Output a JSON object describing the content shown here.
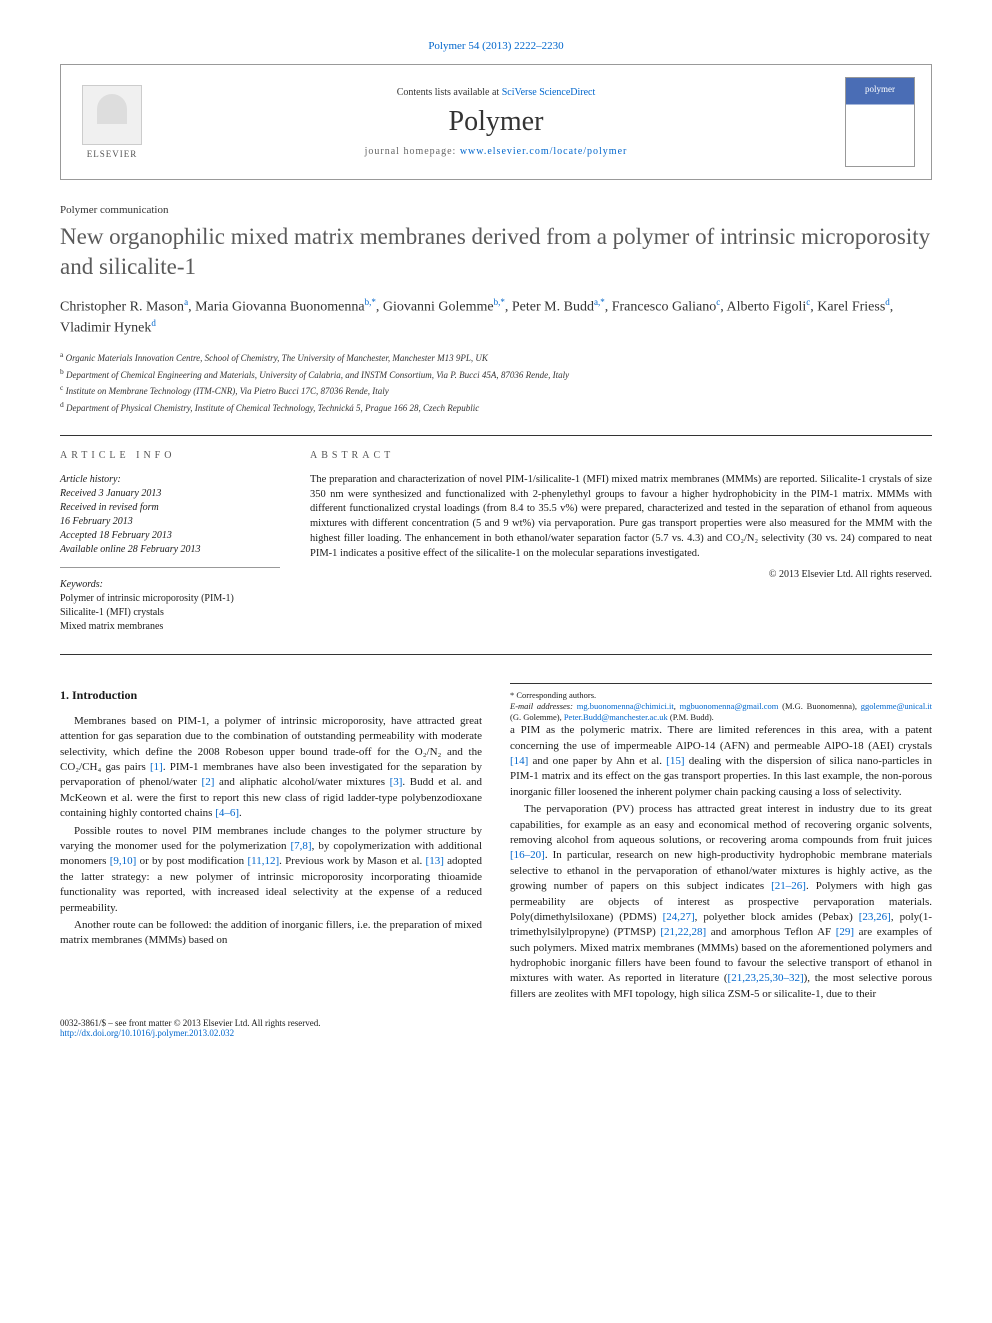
{
  "citation": "Polymer 54 (2013) 2222–2230",
  "header": {
    "publisher_name": "ELSEVIER",
    "contents_prefix": "Contents lists available at ",
    "contents_link": "SciVerse ScienceDirect",
    "journal_name": "Polymer",
    "homepage_prefix": "journal homepage: ",
    "homepage_url": "www.elsevier.com/locate/polymer",
    "thumb_label": "polymer"
  },
  "article": {
    "comm_type": "Polymer communication",
    "title": "New organophilic mixed matrix membranes derived from a polymer of intrinsic microporosity and silicalite-1",
    "authors_html": "Christopher R. Mason<sup>a</sup>, Maria Giovanna Buonomenna<sup>b,*</sup>, Giovanni Golemme<sup>b,*</sup>, Peter M. Budd<sup>a,*</sup>, Francesco Galiano<sup>c</sup>, Alberto Figoli<sup>c</sup>, Karel Friess<sup>d</sup>, Vladimir Hynek<sup>d</sup>",
    "affiliations": {
      "a": "Organic Materials Innovation Centre, School of Chemistry, The University of Manchester, Manchester M13 9PL, UK",
      "b": "Department of Chemical Engineering and Materials, University of Calabria, and INSTM Consortium, Via P. Bucci 45A, 87036 Rende, Italy",
      "c": "Institute on Membrane Technology (ITM-CNR), Via Pietro Bucci 17C, 87036 Rende, Italy",
      "d": "Department of Physical Chemistry, Institute of Chemical Technology, Technická 5, Prague 166 28, Czech Republic"
    }
  },
  "info": {
    "label": "ARTICLE INFO",
    "history_title": "Article history:",
    "history": [
      "Received 3 January 2013",
      "Received in revised form",
      "16 February 2013",
      "Accepted 18 February 2013",
      "Available online 28 February 2013"
    ],
    "keywords_title": "Keywords:",
    "keywords": [
      "Polymer of intrinsic microporosity (PIM-1)",
      "Silicalite-1 (MFI) crystals",
      "Mixed matrix membranes"
    ]
  },
  "abstract": {
    "label": "ABSTRACT",
    "text": "The preparation and characterization of novel PIM-1/silicalite-1 (MFI) mixed matrix membranes (MMMs) are reported. Silicalite-1 crystals of size 350 nm were synthesized and functionalized with 2-phenylethyl groups to favour a higher hydrophobicity in the PIM-1 matrix. MMMs with different functionalized crystal loadings (from 8.4 to 35.5 v%) were prepared, characterized and tested in the separation of ethanol from aqueous mixtures with different concentration (5 and 9 wt%) via pervaporation. Pure gas transport properties were also measured for the MMM with the highest filler loading. The enhancement in both ethanol/water separation factor (5.7 vs. 4.3) and CO₂/N₂ selectivity (30 vs. 24) compared to neat PIM-1 indicates a positive effect of the silicalite-1 on the molecular separations investigated.",
    "copyright": "© 2013 Elsevier Ltd. All rights reserved."
  },
  "body": {
    "section1_title": "1. Introduction",
    "p1": "Membranes based on PIM-1, a polymer of intrinsic microporosity, have attracted great attention for gas separation due to the combination of outstanding permeability with moderate selectivity, which define the 2008 Robeson upper bound trade-off for the O₂/N₂ and the CO₂/CH₄ gas pairs [1]. PIM-1 membranes have also been investigated for the separation by pervaporation of phenol/water [2] and aliphatic alcohol/water mixtures [3]. Budd et al. and McKeown et al. were the first to report this new class of rigid ladder-type polybenzodioxane containing highly contorted chains [4–6].",
    "p2": "Possible routes to novel PIM membranes include changes to the polymer structure by varying the monomer used for the polymerization [7,8], by copolymerization with additional monomers [9,10] or by post modification [11,12]. Previous work by Mason et al. [13] adopted the latter strategy: a new polymer of intrinsic microporosity incorporating thioamide functionality was reported, with increased ideal selectivity at the expense of a reduced permeability.",
    "p3": "Another route can be followed: the addition of inorganic fillers, i.e. the preparation of mixed matrix membranes (MMMs) based on",
    "p4": "a PIM as the polymeric matrix. There are limited references in this area, with a patent concerning the use of impermeable AlPO-14 (AFN) and permeable AlPO-18 (AEI) crystals [14] and one paper by Ahn et al. [15] dealing with the dispersion of silica nano-particles in PIM-1 matrix and its effect on the gas transport properties. In this last example, the non-porous inorganic filler loosened the inherent polymer chain packing causing a loss of selectivity.",
    "p5": "The pervaporation (PV) process has attracted great interest in industry due to its great capabilities, for example as an easy and economical method of recovering organic solvents, removing alcohol from aqueous solutions, or recovering aroma compounds from fruit juices [16–20]. In particular, research on new high-productivity hydrophobic membrane materials selective to ethanol in the pervaporation of ethanol/water mixtures is highly active, as the growing number of papers on this subject indicates [21–26]. Polymers with high gas permeability are objects of interest as prospective pervaporation materials. Poly(dimethylsiloxane) (PDMS) [24,27], polyether block amides (Pebax) [23,26], poly(1-trimethylsilylpropyne) (PTMSP) [21,22,28] and amorphous Teflon AF [29] are examples of such polymers. Mixed matrix membranes (MMMs) based on the aforementioned polymers and hydrophobic inorganic fillers have been found to favour the selective transport of ethanol in mixtures with water. As reported in literature ([21,23,25,30–32]), the most selective porous fillers are zeolites with MFI topology, high silica ZSM-5 or silicalite-1, due to their"
  },
  "footnotes": {
    "corr": "* Corresponding authors.",
    "email_label": "E-mail addresses:",
    "emails": "mg.buonomenna@chimici.it, mgbuonomenna@gmail.com (M.G. Buonomenna), ggolemme@unical.it (G. Golemme), Peter.Budd@manchester.ac.uk (P.M. Budd)."
  },
  "footer": {
    "issn": "0032-3861/$ – see front matter © 2013 Elsevier Ltd. All rights reserved.",
    "doi": "http://dx.doi.org/10.1016/j.polymer.2013.02.032"
  },
  "colors": {
    "link": "#0066cc",
    "title_gray": "#5a5a5a",
    "rule": "#333333"
  }
}
